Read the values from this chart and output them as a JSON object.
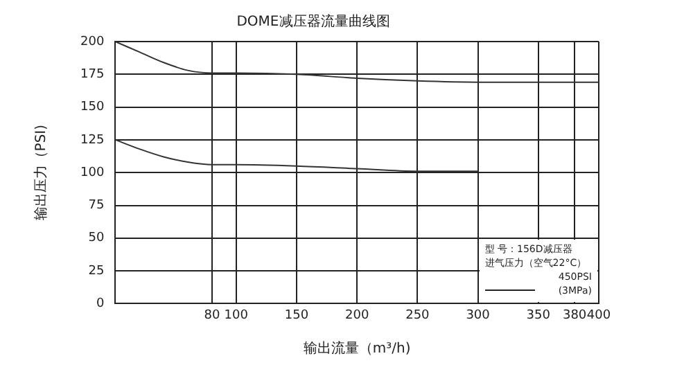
{
  "chart_data": {
    "type": "line",
    "title": "DOME减压器流量曲线图",
    "xlabel": "输出流量（m³/h)",
    "ylabel": "输出压力（PSI)",
    "xlim": [
      0,
      400
    ],
    "xticks": [
      80,
      100,
      150,
      200,
      250,
      300,
      350,
      380,
      400
    ],
    "ylim": [
      0,
      200
    ],
    "yticks": [
      0,
      25,
      50,
      75,
      100,
      125,
      150,
      175,
      200
    ],
    "grid": true,
    "legend": false,
    "marker": "none",
    "line_style": "solid",
    "series": [
      {
        "color": "#333333",
        "x": [
          0,
          20,
          40,
          60,
          80,
          100,
          150,
          200,
          250,
          300,
          400
        ],
        "values": [
          200,
          192,
          184,
          178,
          176,
          176,
          175,
          172,
          170,
          169,
          169
        ]
      },
      {
        "color": "#333333",
        "x": [
          0,
          20,
          40,
          60,
          80,
          100,
          150,
          200,
          250,
          300
        ],
        "values": [
          125,
          118,
          112,
          108,
          106,
          106,
          105,
          103,
          101,
          101
        ]
      }
    ],
    "annotations": [
      "型 号：156D减压器",
      "进气压力（空气22°C）",
      "450PSI",
      "(3MPa)"
    ]
  }
}
